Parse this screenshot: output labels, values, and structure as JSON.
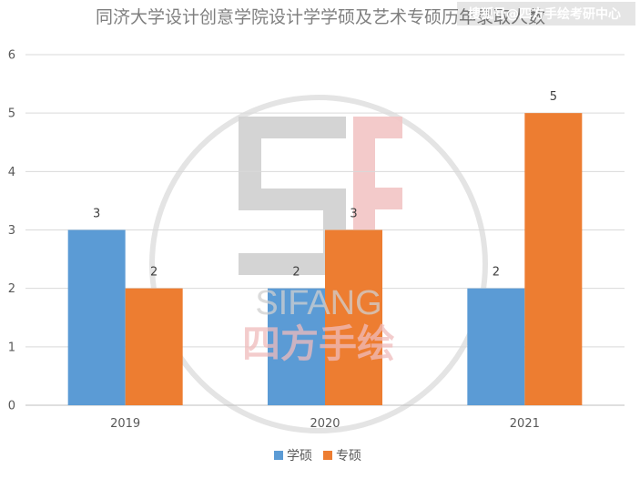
{
  "chart_data": {
    "type": "bar",
    "title": "同济大学设计创意学院设计学学硕及艺术专硕历年录取人数",
    "categories": [
      "2019",
      "2020",
      "2021"
    ],
    "series": [
      {
        "name": "学硕",
        "values": [
          3,
          2,
          2
        ],
        "color": "#5b9bd5"
      },
      {
        "name": "专硕",
        "values": [
          2,
          3,
          5
        ],
        "color": "#ed7d31"
      }
    ],
    "ylim": [
      0,
      6
    ],
    "yticks": [
      0,
      1,
      2,
      3,
      4,
      5,
      6
    ],
    "grid": true,
    "legend": "bottom",
    "data_labels": true
  },
  "watermark": {
    "corner_text": "搜狐号@四方手绘考研中心",
    "logo_latin": "SIFANG",
    "logo_cjk": "四方手绘",
    "logo_mark": "SF"
  }
}
